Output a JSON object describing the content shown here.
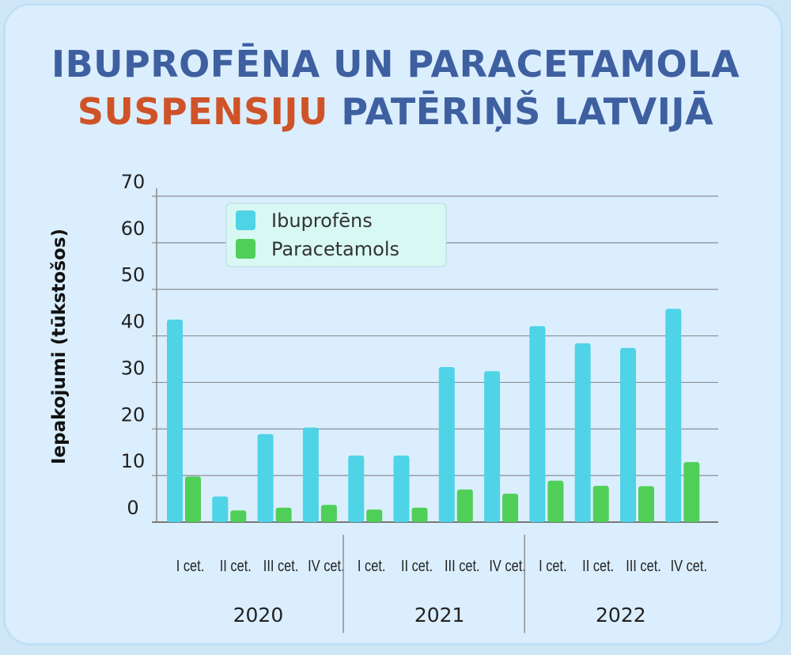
{
  "title": {
    "line1": "IBUPROFĒNA UN PARACETAMOLA",
    "line2_accent": "SUSPENSIJU",
    "line2_rest": "PATĒRIŅŠ LATVIJĀ"
  },
  "colors": {
    "ibuprofens": "#4fd3e6",
    "paracetamols": "#4fcf58",
    "title_blue": "#3e5fa0",
    "title_accent": "#cf5328"
  },
  "chart_data": {
    "type": "bar",
    "title": "IBUPROFĒNA UN PARACETAMOLA SUSPENSIJU PATĒRIŅŠ LATVIJĀ",
    "ylabel": "Iepakojumi (tūkstošos)",
    "xlabel": "",
    "ylim": [
      0,
      70
    ],
    "yticks": [
      "0",
      "10",
      "20",
      "30",
      "40",
      "50",
      "60",
      "70"
    ],
    "grid": true,
    "legend_position": "top-left",
    "categories": [
      "I cet.",
      "II cet.",
      "III cet.",
      "IV cet.",
      "I cet.",
      "II cet.",
      "III cet.",
      "IV cet.",
      "I cet.",
      "II cet.",
      "III cet.",
      "IV cet."
    ],
    "groups": [
      {
        "label": "2020",
        "count": 4
      },
      {
        "label": "2021",
        "count": 4
      },
      {
        "label": "2022",
        "count": 4
      }
    ],
    "series": [
      {
        "name": "Ibuprofēns",
        "values": [
          43.5,
          5.5,
          18.9,
          20.3,
          14.3,
          14.3,
          33.3,
          32.4,
          42.1,
          38.4,
          37.4,
          45.8
        ]
      },
      {
        "name": "Paracetamols",
        "values": [
          9.8,
          2.5,
          3.1,
          3.7,
          2.7,
          3.1,
          7.0,
          6.1,
          8.9,
          7.8,
          7.7,
          12.9
        ]
      }
    ]
  }
}
